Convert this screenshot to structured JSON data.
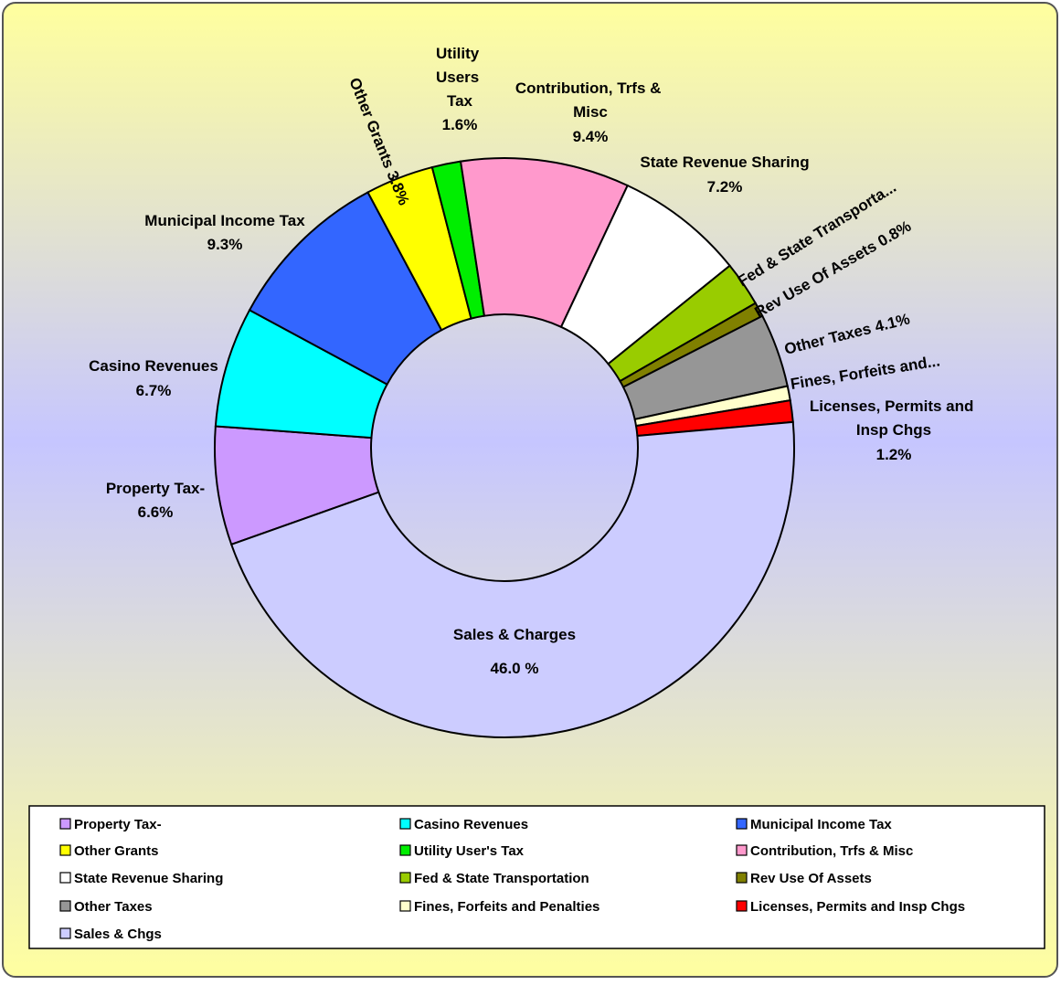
{
  "chart_data": {
    "type": "pie",
    "donut": true,
    "categories": [
      "Property Tax-",
      "Casino Revenues",
      "Municipal Income Tax",
      "Other Grants",
      "Utility User's  Tax",
      "Contribution, Trfs & Misc",
      "State Revenue Sharing",
      "Fed & State Transportation",
      "Rev Use Of Assets",
      "Other Taxes",
      "Fines, Forfeits and Penalties",
      "Licenses, Permits and Insp Chgs",
      "Sales & Chgs"
    ],
    "slice_labels": [
      "Property Tax-",
      "Casino Revenues",
      "Municipal Income Tax",
      "Other Grants",
      "Utility Users Tax",
      "Contribution, Trfs & Misc",
      "State Revenue Sharing",
      "Fed & State Transporta...",
      "Rev Use Of Assets",
      "Other Taxes",
      "Fines, Forfeits and...",
      "Licenses, Permits and Insp Chgs",
      "Sales & Charges"
    ],
    "values": [
      6.6,
      6.7,
      9.3,
      3.8,
      1.6,
      9.4,
      7.2,
      2.5,
      0.8,
      4.1,
      0.8,
      1.2,
      46.0
    ],
    "value_labels": [
      "6.6%",
      "6.7%",
      "9.3%",
      "3.8%",
      "1.6%",
      "9.4%",
      "7.2%",
      null,
      "0.8%",
      "4.1%",
      null,
      "1.2%",
      "46.0 %"
    ],
    "colors": [
      "#cc99ff",
      "#00ffff",
      "#3366ff",
      "#ffff00",
      "#00ee00",
      "#ff99cc",
      "#ffffff",
      "#99cc00",
      "#808000",
      "#969696",
      "#ffffcc",
      "#ff0000",
      "#ccccff"
    ],
    "legend": "bottom"
  }
}
